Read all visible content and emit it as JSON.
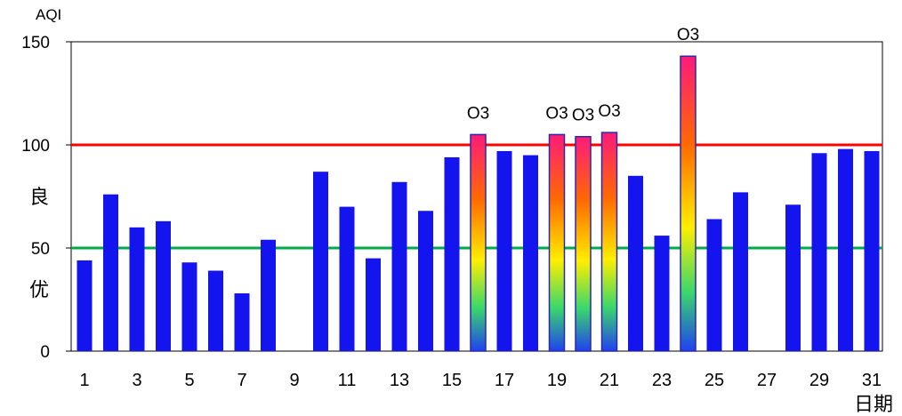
{
  "chart_data": {
    "type": "bar",
    "title": "",
    "ylabel": "AQI",
    "xlabel": "日期",
    "ylim": [
      0,
      150
    ],
    "yticks": [
      0,
      50,
      100,
      150
    ],
    "xtick_labels": [
      "1",
      "3",
      "5",
      "7",
      "9",
      "11",
      "13",
      "15",
      "17",
      "19",
      "21",
      "23",
      "25",
      "27",
      "29",
      "31"
    ],
    "categories": [
      1,
      2,
      3,
      4,
      5,
      6,
      7,
      8,
      9,
      10,
      11,
      12,
      13,
      14,
      15,
      16,
      17,
      18,
      19,
      20,
      21,
      22,
      23,
      24,
      25,
      26,
      27,
      28,
      29,
      30,
      31
    ],
    "values": [
      44,
      76,
      60,
      63,
      43,
      39,
      28,
      54,
      null,
      87,
      70,
      45,
      82,
      68,
      94,
      105,
      97,
      95,
      105,
      104,
      106,
      85,
      56,
      143,
      64,
      77,
      null,
      71,
      96,
      98,
      97
    ],
    "bar_labels": {
      "16": "O3",
      "19": "O3",
      "20": "O3",
      "21": "O3",
      "24": "O3"
    },
    "reference_lines": [
      {
        "value": 100,
        "color": "#ff0000"
      },
      {
        "value": 50,
        "color": "#00aa44"
      }
    ],
    "band_labels": [
      {
        "text": "良",
        "y": 75
      },
      {
        "text": "优",
        "y": 30
      }
    ],
    "colors": {
      "bar": "#1414ee",
      "bar_border": "#2a2aa8",
      "gradient": [
        "#ff1a7a",
        "#ff6a00",
        "#ffee00",
        "#3ad86a",
        "#2040f0"
      ],
      "frame": "#000000"
    },
    "grid": false
  }
}
